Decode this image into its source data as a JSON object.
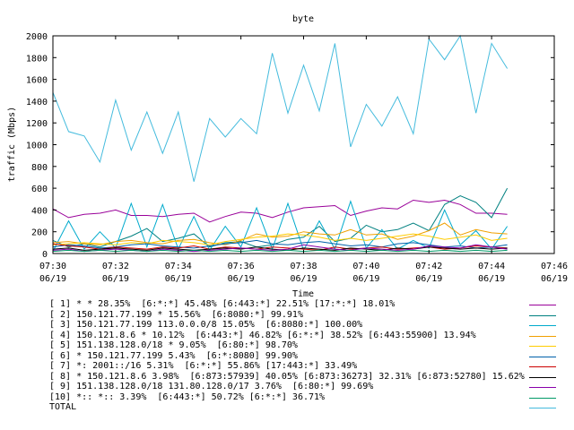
{
  "chart_data": {
    "type": "line",
    "title": "byte",
    "xlabel": "Time",
    "ylabel": "traffic (Mbps)",
    "ylim": [
      0,
      2000
    ],
    "yticks": [
      0,
      200,
      400,
      600,
      800,
      1000,
      1200,
      1400,
      1600,
      1800,
      2000
    ],
    "xlim": [
      0,
      16
    ],
    "xticks": [
      {
        "t": 0,
        "time": "07:30",
        "date": "06/19"
      },
      {
        "t": 2,
        "time": "07:32",
        "date": "06/19"
      },
      {
        "t": 4,
        "time": "07:34",
        "date": "06/19"
      },
      {
        "t": 6,
        "time": "07:36",
        "date": "06/19"
      },
      {
        "t": 8,
        "time": "07:38",
        "date": "06/19"
      },
      {
        "t": 10,
        "time": "07:40",
        "date": "06/19"
      },
      {
        "t": 12,
        "time": "07:42",
        "date": "06/19"
      },
      {
        "t": 14,
        "time": "07:44",
        "date": "06/19"
      },
      {
        "t": 16,
        "time": "07:46",
        "date": "06/19"
      }
    ],
    "x": [
      0,
      0.5,
      1,
      1.5,
      2,
      2.5,
      3,
      3.5,
      4,
      4.5,
      5,
      5.5,
      6,
      6.5,
      7,
      7.5,
      8,
      8.5,
      9,
      9.5,
      10,
      10.5,
      11,
      11.5,
      12,
      12.5,
      13,
      13.5,
      14,
      14.5
    ],
    "series": [
      {
        "name": "[ 1] * * 28.35%  [6:*:*] 45.48% [6:443:*] 22.51% [17:*:*] 18.01%",
        "color": "#990099",
        "values": [
          410,
          330,
          360,
          370,
          400,
          350,
          350,
          340,
          360,
          370,
          290,
          340,
          380,
          370,
          330,
          380,
          420,
          430,
          440,
          350,
          390,
          420,
          410,
          490,
          470,
          490,
          450,
          370,
          370,
          360
        ]
      },
      {
        "name": "[ 2] 150.121.77.199 * 15.56%  [6:8080:*] 99.91%",
        "color": "#008080",
        "values": [
          120,
          60,
          90,
          60,
          110,
          160,
          230,
          110,
          140,
          180,
          60,
          100,
          110,
          60,
          80,
          130,
          150,
          250,
          110,
          140,
          260,
          200,
          220,
          280,
          210,
          450,
          530,
          470,
          330,
          600
        ]
      },
      {
        "name": "[ 3] 150.121.77.199 113.0.0.0/8 15.05%  [6:8080:*] 100.00%",
        "color": "#00aacc",
        "values": [
          20,
          300,
          40,
          200,
          50,
          460,
          60,
          450,
          40,
          340,
          30,
          250,
          60,
          420,
          40,
          460,
          30,
          300,
          40,
          480,
          50,
          220,
          40,
          120,
          50,
          400,
          80,
          210,
          40,
          250
        ]
      },
      {
        "name": "[ 4] 150.121.8.6 * 10.12%  [6:443:*] 46.82% [6:*:*] 38.52% [6:443:55900] 13.94%",
        "color": "#f0a000",
        "values": [
          100,
          110,
          90,
          80,
          110,
          120,
          100,
          90,
          120,
          130,
          100,
          80,
          120,
          180,
          150,
          160,
          200,
          180,
          170,
          220,
          170,
          180,
          130,
          160,
          210,
          280,
          170,
          220,
          190,
          180
        ]
      },
      {
        "name": "[ 5] 151.138.128.0/18 * 9.05%  [6:80:*] 98.70%",
        "color": "#ffcc00",
        "values": [
          80,
          90,
          100,
          90,
          80,
          100,
          90,
          120,
          110,
          100,
          80,
          110,
          130,
          150,
          160,
          180,
          170,
          150,
          120,
          140,
          120,
          140,
          160,
          180,
          160,
          130,
          150,
          170,
          120,
          140
        ]
      },
      {
        "name": "[ 6] * 150.121.77.199 5.43%  [6:*:8080] 99.90%",
        "color": "#0060aa",
        "values": [
          60,
          80,
          70,
          50,
          60,
          80,
          90,
          70,
          60,
          50,
          70,
          90,
          100,
          120,
          90,
          80,
          100,
          110,
          90,
          70,
          80,
          60,
          90,
          100,
          80,
          60,
          70,
          50,
          60,
          80
        ]
      },
      {
        "name": "[ 7] *: 2001::/16 5.31%  [6:*:*] 55.86% [17:443:*] 33.49%",
        "color": "#cc0000",
        "values": [
          90,
          70,
          60,
          40,
          60,
          50,
          40,
          60,
          50,
          70,
          40,
          60,
          50,
          40,
          60,
          50,
          40,
          30,
          60,
          40,
          50,
          60,
          40,
          50,
          60,
          40,
          50,
          70,
          60,
          50
        ]
      },
      {
        "name": "[ 8] * 150.121.8.6 3.98%  [6:873:57939] 40.05% [6:873:36273] 32.31% [6:873:52780] 15.62%",
        "color": "#000000",
        "values": [
          40,
          50,
          30,
          40,
          50,
          40,
          30,
          50,
          40,
          30,
          40,
          50,
          40,
          60,
          40,
          30,
          50,
          40,
          30,
          50,
          40,
          30,
          50,
          40,
          60,
          50,
          40,
          50,
          40,
          50
        ]
      },
      {
        "name": "[ 9] 151.138.128.0/18 131.80.128.0/17 3.76%  [6:80:*] 99.69%",
        "color": "#8800aa",
        "values": [
          30,
          40,
          20,
          30,
          40,
          30,
          20,
          40,
          30,
          20,
          30,
          40,
          50,
          40,
          30,
          40,
          80,
          60,
          40,
          30,
          50,
          40,
          30,
          40,
          70,
          60,
          50,
          80,
          60,
          40
        ]
      },
      {
        "name": "[10] *:: *:: 3.39%  [6:443:*] 50.72% [6:*:*] 36.71%",
        "color": "#009966",
        "values": [
          20,
          30,
          20,
          30,
          20,
          30,
          20,
          30,
          20,
          30,
          20,
          30,
          20,
          30,
          20,
          30,
          20,
          30,
          20,
          30,
          20,
          30,
          20,
          30,
          20,
          30,
          20,
          30,
          20,
          30
        ]
      },
      {
        "name": "TOTAL",
        "color": "#44bbdd",
        "values": [
          1480,
          1120,
          1080,
          840,
          1410,
          950,
          1300,
          920,
          1300,
          660,
          1240,
          1070,
          1240,
          1100,
          1840,
          1290,
          1730,
          1310,
          1930,
          980,
          1370,
          1170,
          1440,
          1100,
          1970,
          1780,
          2000,
          1290,
          1930,
          1700
        ]
      }
    ]
  }
}
